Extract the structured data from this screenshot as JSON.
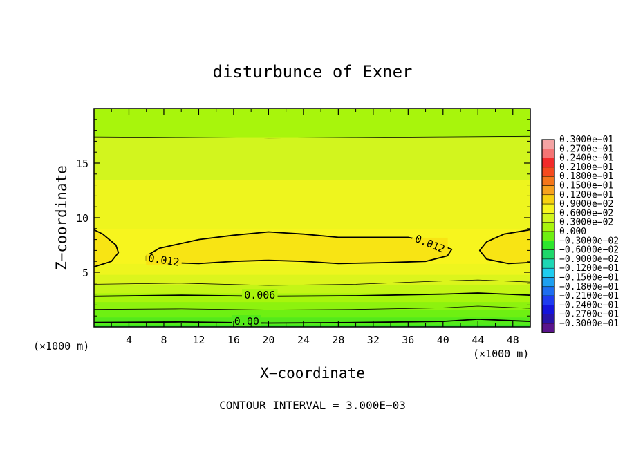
{
  "chart_data": {
    "type": "contour",
    "title": "disturbunce of Exner",
    "xlabel": "X−coordinate",
    "ylabel": "Z−coordinate",
    "x_unit": "(×1000 m)",
    "y_unit": "(×1000 m)",
    "xlim": [
      0,
      50
    ],
    "ylim": [
      0,
      20
    ],
    "x_ticks": [
      4,
      8,
      12,
      16,
      20,
      24,
      28,
      32,
      36,
      40,
      44,
      48
    ],
    "y_ticks": [
      5,
      10,
      15
    ],
    "footer": "CONTOUR INTERVAL = 3.000E−03",
    "contour_labels": [
      {
        "text": "0.012",
        "x": 8,
        "z": 6.1
      },
      {
        "text": "0.012",
        "x": 38.5,
        "z": 7.6
      },
      {
        "text": "0.006",
        "x": 19,
        "z": 2.9
      },
      {
        "text": "0.00",
        "x": 17.5,
        "z": 0.5
      }
    ],
    "legend": [
      {
        "label": "0.3000e−01",
        "color": "#f4a3a3"
      },
      {
        "label": "0.2700e−01",
        "color": "#f47474"
      },
      {
        "label": "0.2400e−01",
        "color": "#f22a2a"
      },
      {
        "label": "0.2100e−01",
        "color": "#f54a1e"
      },
      {
        "label": "0.1800e−01",
        "color": "#f5761a"
      },
      {
        "label": "0.1500e−01",
        "color": "#f7a21e"
      },
      {
        "label": "0.1200e−01",
        "color": "#f8d110"
      },
      {
        "label": "0.9000e−02",
        "color": "#f7f51e"
      },
      {
        "label": "0.6000e−02",
        "color": "#d2f51e"
      },
      {
        "label": "0.3000e−02",
        "color": "#a8f50c"
      },
      {
        "label": "0.000",
        "color": "#6ef012"
      },
      {
        "label": "−0.3000e−02",
        "color": "#2de62d"
      },
      {
        "label": "−0.6000e−02",
        "color": "#1ed76a"
      },
      {
        "label": "−0.9000e−02",
        "color": "#1ed7b4"
      },
      {
        "label": "−0.1200e−01",
        "color": "#1ecdf0"
      },
      {
        "label": "−0.1500e−01",
        "color": "#1ea0f0"
      },
      {
        "label": "−0.1800e−01",
        "color": "#1e6ef0"
      },
      {
        "label": "−0.2100e−01",
        "color": "#1e3cf0"
      },
      {
        "label": "−0.2400e−01",
        "color": "#1414dc"
      },
      {
        "label": "−0.2700e−01",
        "color": "#2814a8"
      },
      {
        "label": "−0.3000e−01",
        "color": "#5a148c"
      }
    ],
    "bands": [
      {
        "z0": 0,
        "z1": 0.2,
        "color": "#2de62d"
      },
      {
        "z0": 0.2,
        "z1": 0.9,
        "color": "#54ea1a"
      },
      {
        "z0": 0.9,
        "z1": 1.6,
        "color": "#6ef012"
      },
      {
        "z0": 1.6,
        "z1": 2.3,
        "color": "#8df20e"
      },
      {
        "z0": 2.3,
        "z1": 3.1,
        "color": "#a8f50c"
      },
      {
        "z0": 3.1,
        "z1": 3.9,
        "color": "#c4f516"
      },
      {
        "z0": 3.9,
        "z1": 4.8,
        "color": "#dcf51c"
      },
      {
        "z0": 4.8,
        "z1": 5.8,
        "color": "#eef51e"
      },
      {
        "z0": 5.8,
        "z1": 9.0,
        "color": "#f7f51e"
      },
      {
        "z0": 9.0,
        "z1": 13.5,
        "color": "#eef51e"
      },
      {
        "z0": 13.5,
        "z1": 17.4,
        "color": "#d2f51e"
      },
      {
        "z0": 17.4,
        "z1": 20,
        "color": "#a8f50c"
      }
    ],
    "contours": [
      {
        "level": "0.000",
        "weight": "bold",
        "points": [
          [
            0,
            0.4
          ],
          [
            10,
            0.45
          ],
          [
            20,
            0.35
          ],
          [
            30,
            0.4
          ],
          [
            40,
            0.5
          ],
          [
            44,
            0.7
          ],
          [
            50,
            0.5
          ]
        ]
      },
      {
        "level": "0.003",
        "weight": "thin",
        "points": [
          [
            0,
            1.6
          ],
          [
            10,
            1.65
          ],
          [
            20,
            1.55
          ],
          [
            30,
            1.6
          ],
          [
            40,
            1.75
          ],
          [
            44,
            1.9
          ],
          [
            50,
            1.7
          ]
        ]
      },
      {
        "level": "0.006",
        "weight": "bold",
        "points": [
          [
            0,
            2.8
          ],
          [
            10,
            2.9
          ],
          [
            20,
            2.8
          ],
          [
            30,
            2.85
          ],
          [
            40,
            3.0
          ],
          [
            44,
            3.1
          ],
          [
            50,
            2.9
          ]
        ]
      },
      {
        "level": "0.009",
        "weight": "thin",
        "points": [
          [
            0,
            3.9
          ],
          [
            10,
            4.0
          ],
          [
            20,
            3.8
          ],
          [
            30,
            3.9
          ],
          [
            40,
            4.2
          ],
          [
            44,
            4.3
          ],
          [
            50,
            4.1
          ]
        ]
      },
      {
        "level": "0.009",
        "weight": "thin",
        "points": [
          [
            0,
            17.4
          ],
          [
            10,
            17.35
          ],
          [
            20,
            17.3
          ],
          [
            30,
            17.35
          ],
          [
            40,
            17.4
          ],
          [
            50,
            17.45
          ]
        ]
      },
      {
        "level": "0.012",
        "weight": "bold",
        "closed": true,
        "points": [
          [
            6,
            6.5
          ],
          [
            7.5,
            7.2
          ],
          [
            12,
            8.0
          ],
          [
            16,
            8.4
          ],
          [
            20,
            8.7
          ],
          [
            24,
            8.5
          ],
          [
            28,
            8.2
          ],
          [
            32,
            8.2
          ],
          [
            36,
            8.2
          ],
          [
            39,
            7.7
          ],
          [
            41,
            7.1
          ],
          [
            40.5,
            6.5
          ],
          [
            38,
            6.0
          ],
          [
            34,
            5.9
          ],
          [
            28,
            5.8
          ],
          [
            24,
            6.0
          ],
          [
            20,
            6.1
          ],
          [
            16,
            6.0
          ],
          [
            12,
            5.8
          ],
          [
            8,
            5.9
          ],
          [
            6,
            6.1
          ]
        ]
      },
      {
        "level": "0.012",
        "weight": "bold",
        "closed": true,
        "points": [
          [
            0,
            8.9
          ],
          [
            1,
            8.5
          ],
          [
            2.5,
            7.5
          ],
          [
            2.8,
            6.8
          ],
          [
            2,
            6.0
          ],
          [
            0,
            5.5
          ]
        ]
      },
      {
        "level": "0.012",
        "weight": "bold",
        "closed": true,
        "points": [
          [
            50,
            8.9
          ],
          [
            47,
            8.5
          ],
          [
            45,
            7.8
          ],
          [
            44.2,
            7.0
          ],
          [
            45,
            6.2
          ],
          [
            47.5,
            5.8
          ],
          [
            50,
            5.9
          ]
        ]
      }
    ],
    "inner_fill": "#f8e414",
    "grid": false,
    "legend_position": "right"
  }
}
